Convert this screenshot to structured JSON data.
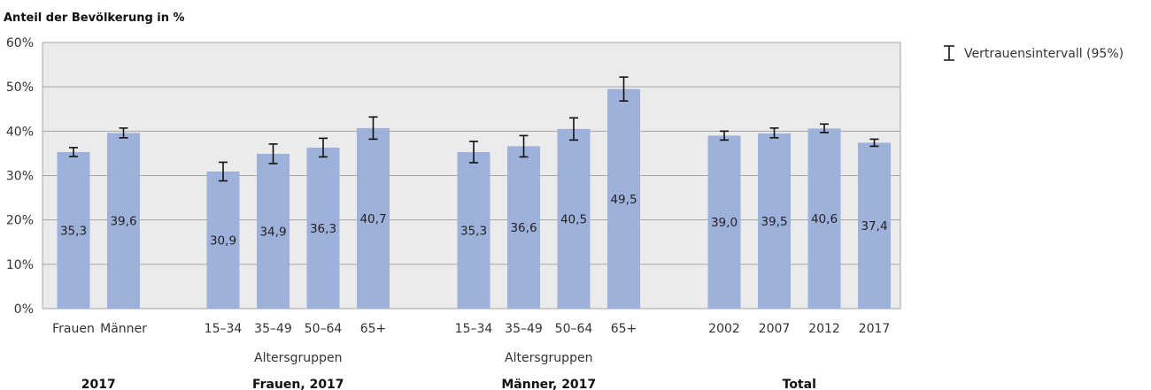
{
  "colors": {
    "bar": "#9DB1DB",
    "plot_background": "#EBEBEB",
    "gridline": "#A6A6A6",
    "error_bar": "#111111"
  },
  "chart_data": {
    "type": "bar",
    "ylabel": "Anteil der Bevölkerung in %",
    "ylim": [
      0,
      60
    ],
    "yticks": [
      "0%",
      "10%",
      "20%",
      "30%",
      "40%",
      "50%",
      "60%"
    ],
    "grid": true,
    "legend": {
      "label": "Vertrauensintervall (95%)",
      "placement": "right"
    },
    "groups": [
      {
        "title": "2017",
        "subtitle": "",
        "bars": [
          {
            "category": "Frauen",
            "value": 35.3,
            "label": "35,3",
            "ci": [
              34.3,
              36.3
            ]
          },
          {
            "category": "Männer",
            "value": 39.6,
            "label": "39,6",
            "ci": [
              38.5,
              40.7
            ]
          }
        ]
      },
      {
        "title": "Frauen, 2017",
        "subtitle": "Altersgruppen",
        "bars": [
          {
            "category": "15–34",
            "value": 30.9,
            "label": "30,9",
            "ci": [
              28.8,
              33.0
            ]
          },
          {
            "category": "35–49",
            "value": 34.9,
            "label": "34,9",
            "ci": [
              32.7,
              37.1
            ]
          },
          {
            "category": "50–64",
            "value": 36.3,
            "label": "36,3",
            "ci": [
              34.2,
              38.4
            ]
          },
          {
            "category": "65+",
            "value": 40.7,
            "label": "40,7",
            "ci": [
              38.2,
              43.2
            ]
          }
        ]
      },
      {
        "title": "Männer, 2017",
        "subtitle": "Altersgruppen",
        "bars": [
          {
            "category": "15–34",
            "value": 35.3,
            "label": "35,3",
            "ci": [
              32.9,
              37.7
            ]
          },
          {
            "category": "35–49",
            "value": 36.6,
            "label": "36,6",
            "ci": [
              34.2,
              39.0
            ]
          },
          {
            "category": "50–64",
            "value": 40.5,
            "label": "40,5",
            "ci": [
              38.0,
              43.0
            ]
          },
          {
            "category": "65+",
            "value": 49.5,
            "label": "49,5",
            "ci": [
              46.8,
              52.2
            ]
          }
        ]
      },
      {
        "title": "Total",
        "subtitle": "",
        "bars": [
          {
            "category": "2002",
            "value": 39.0,
            "label": "39,0",
            "ci": [
              38.0,
              40.0
            ]
          },
          {
            "category": "2007",
            "value": 39.5,
            "label": "39,5",
            "ci": [
              38.5,
              40.7
            ]
          },
          {
            "category": "2012",
            "value": 40.6,
            "label": "40,6",
            "ci": [
              39.7,
              41.6
            ]
          },
          {
            "category": "2017",
            "value": 37.4,
            "label": "37,4",
            "ci": [
              36.6,
              38.2
            ]
          }
        ]
      }
    ]
  }
}
